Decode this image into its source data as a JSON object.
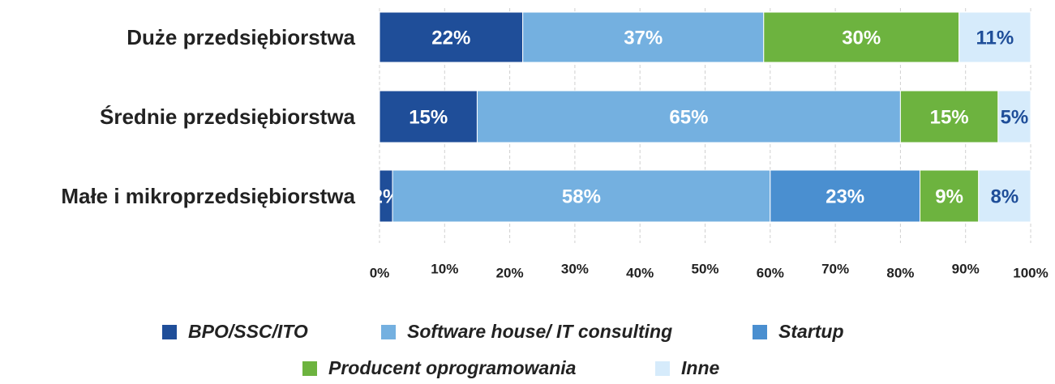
{
  "chart_data": {
    "type": "stacked-barh",
    "categories": [
      "Duże przedsiębiorstwa",
      "Średnie przedsiębiorstwa",
      "Małe i mikroprzedsiębiorstwa"
    ],
    "series": [
      {
        "name": "BPO/SSC/ITO",
        "color": "#1f4e99",
        "values": [
          22,
          15,
          2
        ],
        "value_labels": [
          "22%",
          "15%",
          "2%"
        ]
      },
      {
        "name": "Software house/ IT consulting",
        "color": "#74b0e0",
        "values": [
          37,
          65,
          58
        ],
        "value_labels": [
          "37%",
          "65%",
          "58%"
        ]
      },
      {
        "name": "Startup",
        "color": "#4a8fd0",
        "values": [
          null,
          null,
          23
        ],
        "value_labels": [
          null,
          null,
          "23%"
        ]
      },
      {
        "name": "Producent oprogramowania",
        "color": "#6db33f",
        "values": [
          30,
          15,
          9
        ],
        "value_labels": [
          "30%",
          "15%",
          "9%"
        ]
      },
      {
        "name": "Inne",
        "color": "#d6ebfb",
        "values": [
          11,
          5,
          8
        ],
        "value_labels": [
          "11%",
          "5%",
          "8%"
        ]
      }
    ],
    "xlim": [
      0,
      100
    ],
    "xticks": [
      {
        "value": 0,
        "label": "0%"
      },
      {
        "value": 10,
        "label": "10%"
      },
      {
        "value": 20,
        "label": "20%"
      },
      {
        "value": 30,
        "label": "30%"
      },
      {
        "value": 40,
        "label": "40%"
      },
      {
        "value": 50,
        "label": "50%"
      },
      {
        "value": 60,
        "label": "60%"
      },
      {
        "value": 70,
        "label": "70%"
      },
      {
        "value": 80,
        "label": "80%"
      },
      {
        "value": 90,
        "label": "90%"
      },
      {
        "value": 100,
        "label": "100%"
      }
    ],
    "grid": true,
    "legend": "bottom"
  }
}
